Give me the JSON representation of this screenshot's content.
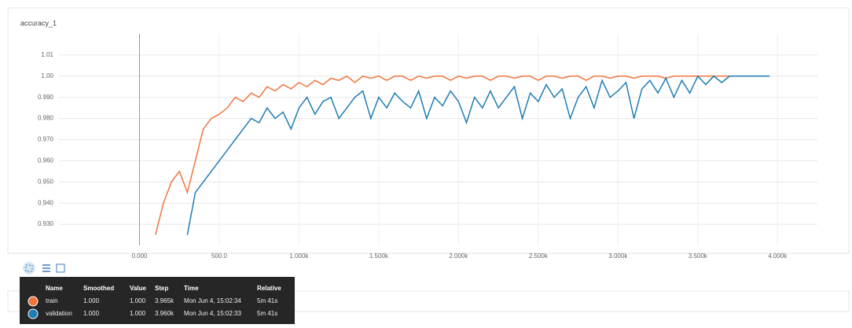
{
  "chart_data": {
    "type": "line",
    "title": "accuracy_1",
    "x": [
      100,
      150,
      200,
      250,
      300,
      350,
      400,
      450,
      500,
      550,
      600,
      650,
      700,
      750,
      800,
      850,
      900,
      950,
      1000,
      1050,
      1100,
      1150,
      1200,
      1250,
      1300,
      1350,
      1400,
      1450,
      1500,
      1550,
      1600,
      1650,
      1700,
      1750,
      1800,
      1850,
      1900,
      1950,
      2000,
      2050,
      2100,
      2150,
      2200,
      2250,
      2300,
      2350,
      2400,
      2450,
      2500,
      2550,
      2600,
      2650,
      2700,
      2750,
      2800,
      2850,
      2900,
      2950,
      3000,
      3050,
      3100,
      3150,
      3200,
      3250,
      3300,
      3350,
      3400,
      3450,
      3500,
      3550,
      3600,
      3650,
      3700,
      3750,
      3800,
      3850,
      3900,
      3950
    ],
    "series": [
      {
        "name": "train",
        "color": "#f0763f",
        "values": [
          0.925,
          0.94,
          0.95,
          0.955,
          0.945,
          0.96,
          0.975,
          0.98,
          0.982,
          0.985,
          0.99,
          0.988,
          0.992,
          0.99,
          0.995,
          0.993,
          0.996,
          0.994,
          0.997,
          0.995,
          0.998,
          0.996,
          0.999,
          0.998,
          1.0,
          0.997,
          1.0,
          0.999,
          1.0,
          0.998,
          1.0,
          1.0,
          0.998,
          1.0,
          0.999,
          1.0,
          1.0,
          0.998,
          1.0,
          0.999,
          1.0,
          1.0,
          0.998,
          1.0,
          1.0,
          0.999,
          1.0,
          1.0,
          0.998,
          1.0,
          1.0,
          0.999,
          1.0,
          1.0,
          0.998,
          1.0,
          1.0,
          0.999,
          1.0,
          1.0,
          0.999,
          1.0,
          1.0,
          1.0,
          0.999,
          1.0,
          1.0,
          1.0,
          1.0,
          1.0,
          1.0,
          1.0,
          1.0,
          1.0,
          1.0,
          1.0,
          1.0,
          1.0
        ]
      },
      {
        "name": "validation",
        "color": "#1f7cb4",
        "values": [
          null,
          null,
          null,
          null,
          0.925,
          0.945,
          0.95,
          0.955,
          0.96,
          0.965,
          0.97,
          0.975,
          0.98,
          0.978,
          0.985,
          0.98,
          0.983,
          0.975,
          0.985,
          0.99,
          0.982,
          0.988,
          0.99,
          0.98,
          0.985,
          0.99,
          0.993,
          0.98,
          0.99,
          0.985,
          0.992,
          0.988,
          0.985,
          0.993,
          0.98,
          0.99,
          0.986,
          0.993,
          0.988,
          0.978,
          0.99,
          0.985,
          0.993,
          0.985,
          0.99,
          0.995,
          0.98,
          0.992,
          0.988,
          0.996,
          0.99,
          0.994,
          0.98,
          0.99,
          0.995,
          0.985,
          0.998,
          0.99,
          0.993,
          0.997,
          0.98,
          0.994,
          0.998,
          0.992,
          0.999,
          0.99,
          0.998,
          0.992,
          1.0,
          0.996,
          1.0,
          0.997,
          1.0,
          1.0,
          1.0,
          1.0,
          1.0,
          1.0
        ]
      }
    ],
    "xlim": [
      -505,
      4250
    ],
    "ylim": [
      0.92,
      1.02
    ],
    "xticks": [
      {
        "value": 0,
        "label": "0.000"
      },
      {
        "value": 500,
        "label": "500.0"
      },
      {
        "value": 1000,
        "label": "1.000k"
      },
      {
        "value": 1500,
        "label": "1.500k"
      },
      {
        "value": 2000,
        "label": "2.000k"
      },
      {
        "value": 2500,
        "label": "2.500k"
      },
      {
        "value": 3000,
        "label": "3.000k"
      },
      {
        "value": 3500,
        "label": "3.500k"
      },
      {
        "value": 4000,
        "label": "4.000k"
      }
    ],
    "yticks": [
      {
        "value": 0.93,
        "label": "0.930"
      },
      {
        "value": 0.94,
        "label": "0.940"
      },
      {
        "value": 0.95,
        "label": "0.950"
      },
      {
        "value": 0.96,
        "label": "0.960"
      },
      {
        "value": 0.97,
        "label": "0.970"
      },
      {
        "value": 0.98,
        "label": "0.980"
      },
      {
        "value": 0.99,
        "label": "0.990"
      },
      {
        "value": 1.0,
        "label": "1.00"
      },
      1.01
    ],
    "grid": true
  },
  "tooltip": {
    "header": [
      "Name",
      "Smoothed",
      "Value",
      "Step",
      "Time",
      "Relative"
    ],
    "rows": [
      [
        "train",
        "1.000",
        "1.000",
        "3.965k",
        "Mon Jun 4, 15:02:34",
        "5m 41s"
      ],
      [
        "validation",
        "1.000",
        "1.000",
        "3.960k",
        "Mon Jun 4, 15:02:33",
        "5m 41s"
      ]
    ]
  }
}
